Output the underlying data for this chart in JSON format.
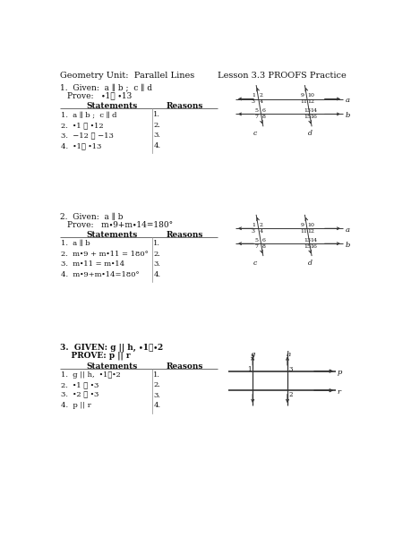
{
  "title_left": "Geometry Unit:  Parallel Lines",
  "title_right": "Lesson 3.3 PROOFS Practice",
  "bg_color": "#ffffff",
  "text_color": "#222222",
  "proof1": {
    "given_label": "1.  Given: ",
    "given_val": "a ∥ b ;  c ∥ d",
    "prove_label": "Prove:  ",
    "prove_val": "∙1≅ ∙13",
    "statements": [
      "a ∥ b ;  c ∥ d",
      "∙1 ≅ ∙12",
      "−12 ≅ −13",
      "∙1≅ ∙13"
    ],
    "reasons_nums": [
      "1.",
      "2.",
      "3.",
      "4."
    ]
  },
  "proof2": {
    "given_label": "2.  Given: ",
    "given_val": "a ∥ b",
    "prove_label": "Prove:  ",
    "prove_val": "m∙9+m∙14=180°",
    "statements": [
      "a ∥ b",
      "m∙9 + m∙11 = 180°",
      "m∙11 = m∙14",
      "m∙9+m∙14=180°"
    ],
    "reasons_nums": [
      "1.",
      "2.",
      "3.",
      "4."
    ]
  },
  "proof3": {
    "given_label": "3.  GIVEN: ",
    "given_val": "g || h, ∙1≅∙2",
    "prove_label": "PROVE: ",
    "prove_val": "p || r",
    "statements": [
      "g || h,  ∙1≅∙2",
      "∙1 ≅ ∙3",
      "∙2 ≅ ∙3",
      "p || r"
    ],
    "reasons_nums": [
      "1.",
      "2.",
      "3.",
      "4."
    ]
  }
}
